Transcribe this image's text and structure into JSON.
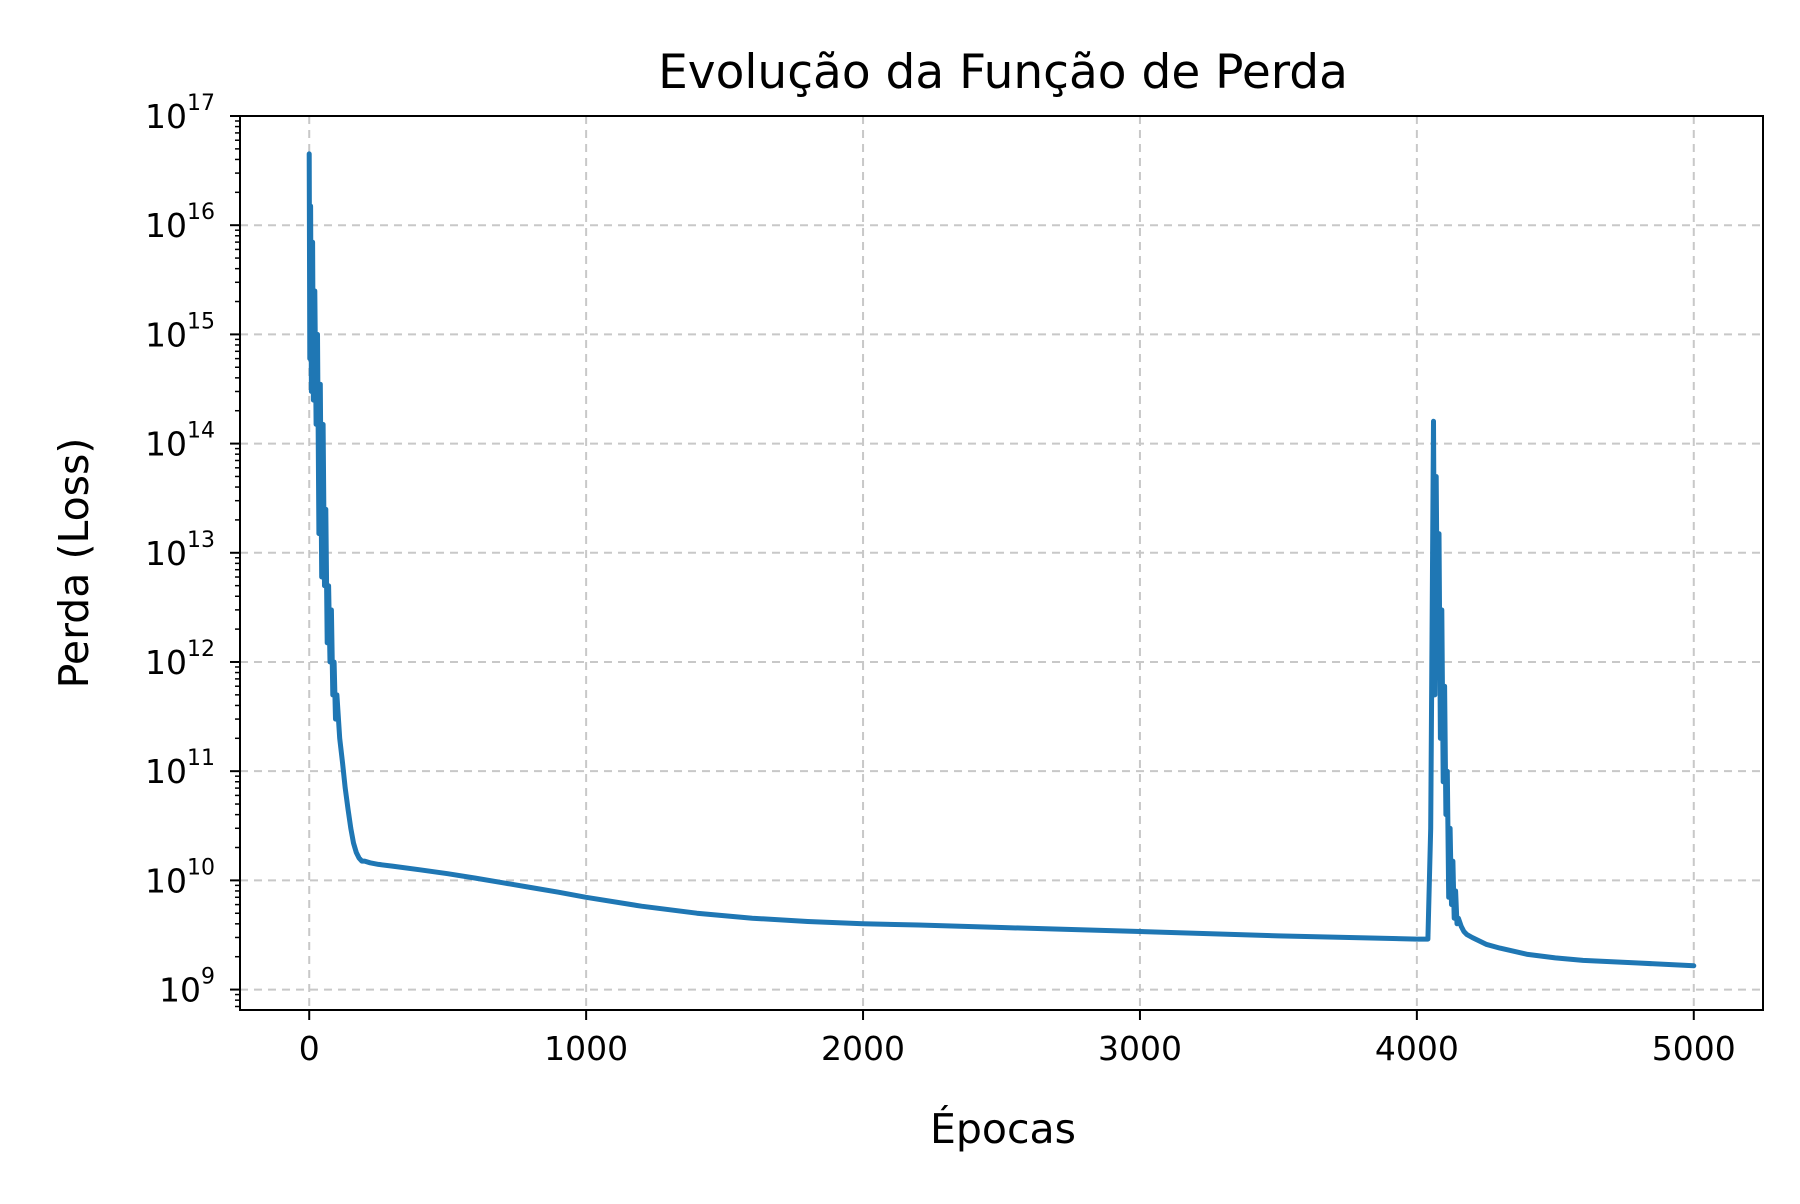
{
  "chart_data": {
    "type": "line",
    "title": "Evolução da Função de Perda",
    "xlabel": "Épocas",
    "ylabel": "Perda (Loss)",
    "yscale": "log",
    "grid": true,
    "legend": "none",
    "xlim": [
      -250,
      5250
    ],
    "ylim": [
      650000000.0,
      1e+17
    ],
    "xticks": [
      0,
      1000,
      2000,
      3000,
      4000,
      5000
    ],
    "yticks": [
      {
        "base": "10",
        "exp": "9"
      },
      {
        "base": "10",
        "exp": "10"
      },
      {
        "base": "10",
        "exp": "11"
      },
      {
        "base": "10",
        "exp": "12"
      },
      {
        "base": "10",
        "exp": "13"
      },
      {
        "base": "10",
        "exp": "14"
      },
      {
        "base": "10",
        "exp": "15"
      },
      {
        "base": "10",
        "exp": "16"
      },
      {
        "base": "10",
        "exp": "17"
      }
    ],
    "colors": {
      "line": "#1f77b4",
      "grid": "#c8c8c8",
      "axes": "#000000"
    },
    "series": [
      {
        "x": [
          0,
          2,
          5,
          8,
          12,
          15,
          20,
          25,
          30,
          35,
          40,
          45,
          50,
          55,
          60,
          65,
          70,
          75,
          80,
          85,
          90,
          95,
          100,
          110,
          120,
          130,
          140,
          150,
          160,
          170,
          180,
          190,
          200,
          220,
          250,
          300,
          400,
          500,
          600,
          700,
          800,
          900,
          1000,
          1200,
          1400,
          1600,
          1800,
          2000,
          2200,
          2500,
          3000,
          3500,
          4000,
          4040,
          4050,
          4060,
          4065,
          4070,
          4075,
          4080,
          4085,
          4090,
          4095,
          4100,
          4105,
          4110,
          4115,
          4120,
          4125,
          4130,
          4135,
          4140,
          4145,
          4150,
          4160,
          4170,
          4180,
          4200,
          4250,
          4300,
          4400,
          4500,
          4600,
          4800,
          5000
        ],
        "y": [
          4.5e+16,
          600000000000000.0,
          1.5e+16,
          300000000000000.0,
          7000000000000000.0,
          250000000000000.0,
          2500000000000000.0,
          150000000000000.0,
          1000000000000000.0,
          15000000000000.0,
          350000000000000.0,
          6000000000000.0,
          150000000000000.0,
          5000000000000.0,
          25000000000000.0,
          1500000000000.0,
          5000000000000.0,
          1000000000000.0,
          3000000000000.0,
          500000000000.0,
          1000000000000.0,
          300000000000.0,
          500000000000.0,
          200000000000.0,
          120000000000.0,
          70000000000.0,
          45000000000.0,
          30000000000.0,
          22000000000.0,
          18000000000.0,
          16000000000.0,
          15000000000.0,
          15000000000.0,
          14500000000.0,
          14000000000.0,
          13500000000.0,
          12500000000.0,
          11500000000.0,
          10500000000.0,
          9500000000.0,
          8600000000.0,
          7800000000.0,
          7000000000.0,
          5800000000.0,
          5000000000.0,
          4500000000.0,
          4200000000.0,
          4000000000.0,
          3900000000.0,
          3700000000.0,
          3400000000.0,
          3100000000.0,
          2900000000.0,
          2900000000.0,
          30000000000.0,
          160000000000000.0,
          500000000000.0,
          50000000000000.0,
          1000000000000.0,
          15000000000000.0,
          200000000000.0,
          3000000000000.0,
          80000000000.0,
          600000000000.0,
          40000000000.0,
          100000000000.0,
          7000000000.0,
          30000000000.0,
          6000000000.0,
          15000000000.0,
          4500000000.0,
          8000000000.0,
          4000000000.0,
          4500000000.0,
          3800000000.0,
          3400000000.0,
          3200000000.0,
          3000000000.0,
          2600000000.0,
          2400000000.0,
          2100000000.0,
          1950000000.0,
          1850000000.0,
          1750000000.0,
          1650000000.0
        ]
      }
    ]
  }
}
